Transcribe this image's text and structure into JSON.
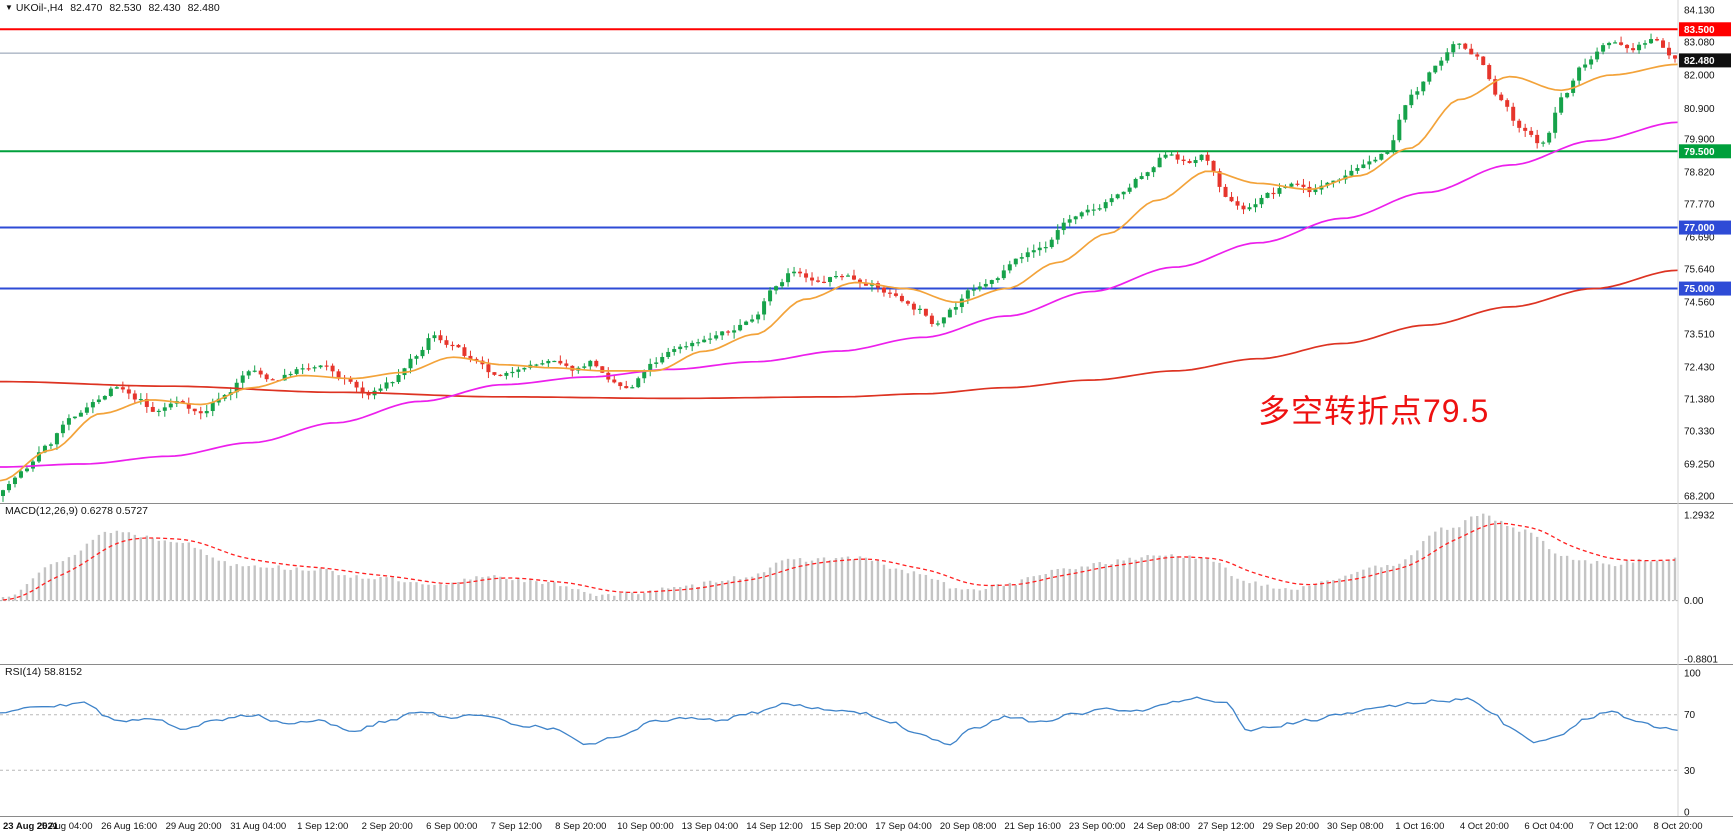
{
  "window": {
    "header": {
      "dropdown_icon": "▼",
      "symbol": "UKOil-,H4",
      "open": "82.470",
      "high": "82.530",
      "low": "82.430",
      "close": "82.480"
    }
  },
  "annotation": {
    "text": "多空转折点79.5",
    "color": "#ee1111"
  },
  "chart_data": {
    "type": "candlestick",
    "symbol": "UKOil-",
    "timeframe": "H4",
    "num_candles": 280,
    "candle_colors": {
      "up": "#16a24a",
      "down": "#e6352c"
    },
    "price_axis": {
      "ticks": [
        "84.130",
        "83.080",
        "82.000",
        "80.900",
        "79.900",
        "78.820",
        "77.770",
        "76.690",
        "75.640",
        "74.560",
        "73.510",
        "72.430",
        "71.380",
        "70.330",
        "69.250",
        "68.200"
      ],
      "y_top_price": 84.46,
      "y_bottom_price": 67.97
    },
    "current_price": {
      "value": 82.48,
      "label": "82.480",
      "tag_color": "#101010"
    },
    "levels": [
      {
        "price": 83.5,
        "color": "#ff0000",
        "label": "83.500",
        "width": 2
      },
      {
        "price": 82.72,
        "color": "#8a99ad",
        "label": "",
        "width": 1
      },
      {
        "price": 79.5,
        "color": "#00a03c",
        "label": "79.500",
        "width": 2
      },
      {
        "price": 77.0,
        "color": "#2e4bd6",
        "label": "77.000",
        "width": 2
      },
      {
        "price": 75.0,
        "color": "#2e4bd6",
        "label": "75.000",
        "width": 2
      }
    ],
    "price_path_anchors": [
      [
        0,
        68.45
      ],
      [
        0.012,
        69.0
      ],
      [
        0.025,
        69.8
      ],
      [
        0.04,
        70.7
      ],
      [
        0.055,
        71.3
      ],
      [
        0.068,
        71.75
      ],
      [
        0.08,
        71.4
      ],
      [
        0.09,
        70.95
      ],
      [
        0.105,
        71.3
      ],
      [
        0.118,
        70.9
      ],
      [
        0.132,
        71.5
      ],
      [
        0.148,
        72.3
      ],
      [
        0.162,
        72.0
      ],
      [
        0.178,
        72.35
      ],
      [
        0.192,
        72.45
      ],
      [
        0.205,
        72.0
      ],
      [
        0.218,
        71.5
      ],
      [
        0.232,
        71.95
      ],
      [
        0.246,
        72.7
      ],
      [
        0.257,
        73.45
      ],
      [
        0.268,
        73.15
      ],
      [
        0.282,
        72.6
      ],
      [
        0.296,
        72.1
      ],
      [
        0.312,
        72.45
      ],
      [
        0.328,
        72.6
      ],
      [
        0.342,
        72.35
      ],
      [
        0.352,
        72.6
      ],
      [
        0.363,
        71.95
      ],
      [
        0.374,
        71.7
      ],
      [
        0.388,
        72.5
      ],
      [
        0.402,
        73.05
      ],
      [
        0.418,
        73.3
      ],
      [
        0.432,
        73.55
      ],
      [
        0.447,
        73.95
      ],
      [
        0.462,
        75.1
      ],
      [
        0.472,
        75.55
      ],
      [
        0.487,
        75.2
      ],
      [
        0.502,
        75.45
      ],
      [
        0.517,
        75.15
      ],
      [
        0.532,
        74.8
      ],
      [
        0.546,
        74.35
      ],
      [
        0.557,
        73.85
      ],
      [
        0.568,
        74.35
      ],
      [
        0.578,
        74.9
      ],
      [
        0.592,
        75.25
      ],
      [
        0.607,
        76.05
      ],
      [
        0.622,
        76.35
      ],
      [
        0.637,
        77.25
      ],
      [
        0.652,
        77.6
      ],
      [
        0.667,
        78.05
      ],
      [
        0.682,
        78.7
      ],
      [
        0.697,
        79.45
      ],
      [
        0.708,
        79.1
      ],
      [
        0.718,
        79.35
      ],
      [
        0.732,
        77.95
      ],
      [
        0.743,
        77.6
      ],
      [
        0.757,
        78.1
      ],
      [
        0.772,
        78.45
      ],
      [
        0.783,
        78.2
      ],
      [
        0.797,
        78.6
      ],
      [
        0.812,
        79.0
      ],
      [
        0.827,
        79.45
      ],
      [
        0.842,
        81.3
      ],
      [
        0.857,
        82.3
      ],
      [
        0.87,
        83.05
      ],
      [
        0.882,
        82.6
      ],
      [
        0.895,
        81.2
      ],
      [
        0.908,
        80.2
      ],
      [
        0.921,
        79.75
      ],
      [
        0.933,
        81.3
      ],
      [
        0.946,
        82.4
      ],
      [
        0.96,
        83.1
      ],
      [
        0.974,
        82.85
      ],
      [
        0.988,
        83.2
      ],
      [
        1,
        82.48
      ]
    ],
    "moving_averages": [
      {
        "name": "slow",
        "color": "#dd3322",
        "anchors": [
          [
            0,
            71.95
          ],
          [
            0.1,
            71.8
          ],
          [
            0.2,
            71.6
          ],
          [
            0.3,
            71.45
          ],
          [
            0.4,
            71.4
          ],
          [
            0.5,
            71.45
          ],
          [
            0.55,
            71.55
          ],
          [
            0.6,
            71.75
          ],
          [
            0.65,
            72.0
          ],
          [
            0.7,
            72.3
          ],
          [
            0.75,
            72.7
          ],
          [
            0.8,
            73.2
          ],
          [
            0.85,
            73.8
          ],
          [
            0.9,
            74.4
          ],
          [
            0.95,
            75.0
          ],
          [
            1,
            75.6
          ]
        ]
      },
      {
        "name": "medium",
        "color": "#ec1fec",
        "anchors": [
          [
            0,
            69.15
          ],
          [
            0.05,
            69.25
          ],
          [
            0.1,
            69.5
          ],
          [
            0.15,
            69.95
          ],
          [
            0.2,
            70.6
          ],
          [
            0.25,
            71.3
          ],
          [
            0.3,
            71.85
          ],
          [
            0.35,
            72.1
          ],
          [
            0.4,
            72.35
          ],
          [
            0.45,
            72.6
          ],
          [
            0.5,
            72.95
          ],
          [
            0.55,
            73.4
          ],
          [
            0.6,
            74.1
          ],
          [
            0.65,
            74.9
          ],
          [
            0.7,
            75.7
          ],
          [
            0.75,
            76.5
          ],
          [
            0.8,
            77.3
          ],
          [
            0.85,
            78.15
          ],
          [
            0.9,
            79.05
          ],
          [
            0.95,
            79.85
          ],
          [
            1,
            80.45
          ]
        ]
      },
      {
        "name": "fast",
        "color": "#f3a33a",
        "anchors": [
          [
            0,
            68.7
          ],
          [
            0.03,
            69.7
          ],
          [
            0.06,
            70.9
          ],
          [
            0.09,
            71.35
          ],
          [
            0.12,
            71.2
          ],
          [
            0.15,
            71.75
          ],
          [
            0.18,
            72.15
          ],
          [
            0.21,
            72.05
          ],
          [
            0.24,
            72.25
          ],
          [
            0.27,
            72.75
          ],
          [
            0.3,
            72.5
          ],
          [
            0.33,
            72.4
          ],
          [
            0.36,
            72.3
          ],
          [
            0.39,
            72.3
          ],
          [
            0.42,
            72.95
          ],
          [
            0.45,
            73.5
          ],
          [
            0.48,
            74.65
          ],
          [
            0.51,
            75.2
          ],
          [
            0.54,
            75.0
          ],
          [
            0.57,
            74.55
          ],
          [
            0.6,
            75.0
          ],
          [
            0.63,
            75.85
          ],
          [
            0.66,
            76.8
          ],
          [
            0.69,
            77.9
          ],
          [
            0.72,
            78.85
          ],
          [
            0.75,
            78.45
          ],
          [
            0.78,
            78.25
          ],
          [
            0.81,
            78.7
          ],
          [
            0.84,
            79.6
          ],
          [
            0.87,
            81.2
          ],
          [
            0.9,
            81.95
          ],
          [
            0.93,
            81.5
          ],
          [
            0.96,
            82.0
          ],
          [
            1,
            82.35
          ]
        ]
      }
    ],
    "macd": {
      "label": "MACD(12,26,9) 0.6278 0.5727",
      "main_value": 0.6278,
      "signal_value": 0.5727,
      "axis_ticks": [
        "1.2932",
        "0.00",
        "-0.8801"
      ],
      "scale": {
        "top": 1.476,
        "bottom": -0.958
      },
      "histogram_color": "#c4c4c4",
      "signal_color": "#ff2020",
      "anchors": [
        [
          0,
          0.05
        ],
        [
          0.03,
          0.55
        ],
        [
          0.065,
          1.05
        ],
        [
          0.1,
          0.92
        ],
        [
          0.14,
          0.55
        ],
        [
          0.18,
          0.48
        ],
        [
          0.22,
          0.35
        ],
        [
          0.26,
          0.22
        ],
        [
          0.29,
          0.38
        ],
        [
          0.33,
          0.25
        ],
        [
          0.36,
          0.08
        ],
        [
          0.4,
          0.18
        ],
        [
          0.44,
          0.35
        ],
        [
          0.475,
          0.62
        ],
        [
          0.51,
          0.65
        ],
        [
          0.545,
          0.42
        ],
        [
          0.575,
          0.15
        ],
        [
          0.6,
          0.25
        ],
        [
          0.63,
          0.45
        ],
        [
          0.66,
          0.58
        ],
        [
          0.695,
          0.7
        ],
        [
          0.72,
          0.62
        ],
        [
          0.745,
          0.28
        ],
        [
          0.77,
          0.18
        ],
        [
          0.8,
          0.35
        ],
        [
          0.83,
          0.55
        ],
        [
          0.865,
          1.1
        ],
        [
          0.885,
          1.29
        ],
        [
          0.91,
          1.05
        ],
        [
          0.935,
          0.65
        ],
        [
          0.96,
          0.55
        ],
        [
          0.98,
          0.6
        ],
        [
          1,
          0.628
        ]
      ]
    },
    "rsi": {
      "label": "RSI(14) 58.8152",
      "value": 58.8152,
      "axis_ticks": [
        "100",
        "70",
        "30",
        "0"
      ],
      "levels": [
        70,
        30
      ],
      "color": "#3e83c9",
      "anchors": [
        [
          0,
          72
        ],
        [
          0.02,
          76
        ],
        [
          0.05,
          78
        ],
        [
          0.07,
          65
        ],
        [
          0.09,
          68
        ],
        [
          0.11,
          60
        ],
        [
          0.13,
          66
        ],
        [
          0.15,
          70
        ],
        [
          0.17,
          64
        ],
        [
          0.19,
          66
        ],
        [
          0.21,
          58
        ],
        [
          0.23,
          65
        ],
        [
          0.25,
          72
        ],
        [
          0.27,
          68
        ],
        [
          0.29,
          70
        ],
        [
          0.31,
          62
        ],
        [
          0.33,
          60
        ],
        [
          0.35,
          48
        ],
        [
          0.37,
          55
        ],
        [
          0.39,
          65
        ],
        [
          0.41,
          68
        ],
        [
          0.43,
          66
        ],
        [
          0.45,
          72
        ],
        [
          0.47,
          78
        ],
        [
          0.49,
          74
        ],
        [
          0.51,
          72
        ],
        [
          0.53,
          65
        ],
        [
          0.55,
          55
        ],
        [
          0.565,
          48
        ],
        [
          0.58,
          60
        ],
        [
          0.6,
          68
        ],
        [
          0.62,
          65
        ],
        [
          0.64,
          70
        ],
        [
          0.66,
          74
        ],
        [
          0.68,
          72
        ],
        [
          0.7,
          80
        ],
        [
          0.715,
          82
        ],
        [
          0.73,
          78
        ],
        [
          0.745,
          58
        ],
        [
          0.76,
          62
        ],
        [
          0.78,
          66
        ],
        [
          0.8,
          70
        ],
        [
          0.82,
          75
        ],
        [
          0.84,
          78
        ],
        [
          0.86,
          80
        ],
        [
          0.875,
          82
        ],
        [
          0.89,
          72
        ],
        [
          0.9,
          60
        ],
        [
          0.915,
          50
        ],
        [
          0.93,
          55
        ],
        [
          0.945,
          68
        ],
        [
          0.96,
          72
        ],
        [
          0.975,
          65
        ],
        [
          0.99,
          60
        ],
        [
          1,
          58.8
        ]
      ]
    },
    "time_labels": [
      "23 Aug 2021",
      "25 Aug 04:00",
      "26 Aug 16:00",
      "29 Aug 20:00",
      "31 Aug 04:00",
      "1 Sep 12:00",
      "2 Sep 20:00",
      "6 Sep 00:00",
      "7 Sep 12:00",
      "8 Sep 20:00",
      "10 Sep 00:00",
      "13 Sep 04:00",
      "14 Sep 12:00",
      "15 Sep 20:00",
      "17 Sep 04:00",
      "20 Sep 08:00",
      "21 Sep 16:00",
      "23 Sep 00:00",
      "24 Sep 08:00",
      "27 Sep 12:00",
      "29 Sep 20:00",
      "30 Sep 08:00",
      "1 Oct 16:00",
      "4 Oct 20:00",
      "6 Oct 04:00",
      "7 Oct 12:00",
      "8 Oct 20:00"
    ]
  }
}
